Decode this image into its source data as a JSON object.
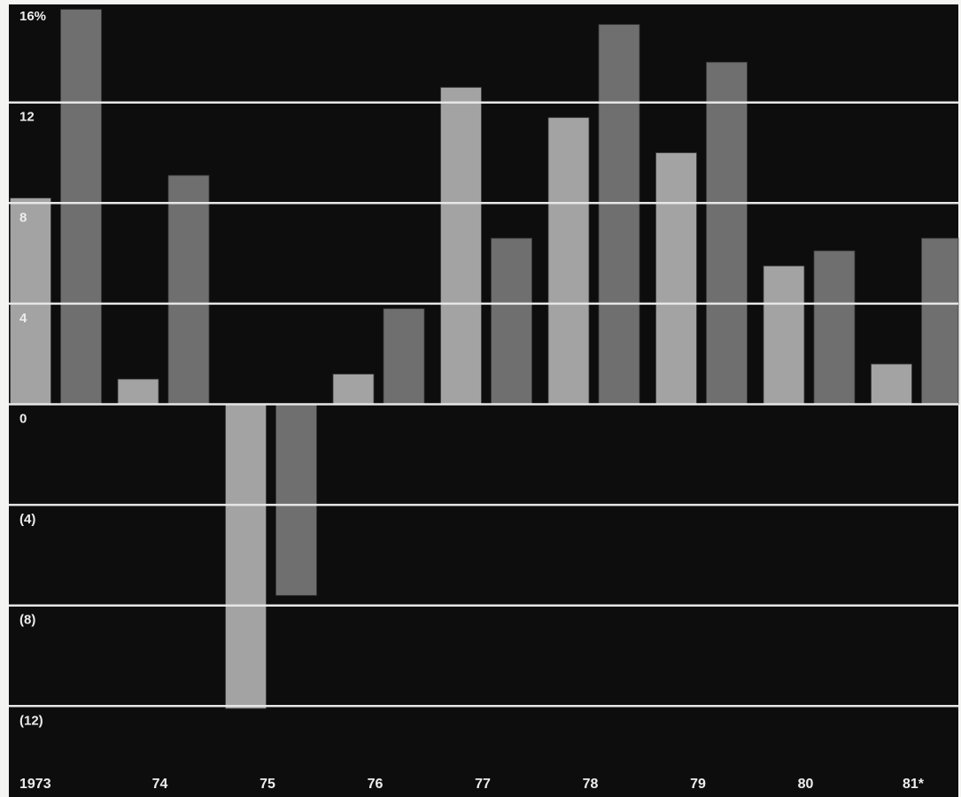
{
  "chart_data": {
    "type": "bar",
    "categories": [
      "1973",
      "74",
      "75",
      "76",
      "77",
      "78",
      "79",
      "80",
      "81*"
    ],
    "series": [
      {
        "values": [
          8.2,
          1.0,
          -12.1,
          1.2,
          12.6,
          11.4,
          10.0,
          5.5,
          1.6
        ]
      },
      {
        "values": [
          15.7,
          9.1,
          -7.6,
          3.8,
          6.6,
          15.1,
          13.6,
          6.1,
          6.6
        ]
      }
    ],
    "yticks": [
      {
        "value": 16,
        "label": "16%"
      },
      {
        "value": 12,
        "label": "12"
      },
      {
        "value": 8,
        "label": "8"
      },
      {
        "value": 4,
        "label": "4"
      },
      {
        "value": 0,
        "label": "0"
      },
      {
        "value": -4,
        "label": "(4)"
      },
      {
        "value": -8,
        "label": "(8)"
      },
      {
        "value": -12,
        "label": "(12)"
      }
    ],
    "gridlines": [
      12,
      8,
      4,
      0,
      -4,
      -8,
      -12
    ],
    "ylim": [
      -14.5,
      16.5
    ],
    "colors": {
      "background": "#0d0d0d",
      "series_light": "#a3a3a3",
      "series_dark": "#6f6f6f",
      "grid": "#e6e6e6",
      "text": "#ededed"
    }
  }
}
